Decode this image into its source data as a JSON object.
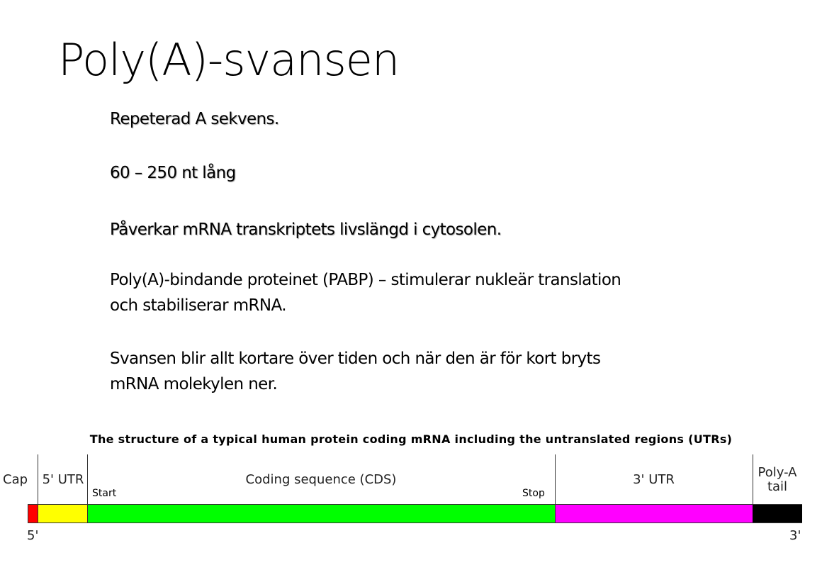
{
  "slide": {
    "title": "Poly(A)-svansen",
    "bullets": [
      "Repeterad A sekvens.",
      "60 – 250 nt lång",
      "Påverkar mRNA transkriptets livslängd i cytosolen.",
      "Poly(A)-bindande proteinet (PABP) – stimulerar nukleär translation",
      "och stabiliserar mRNA.",
      "Svansen blir allt kortare över tiden och när den är för kort bryts",
      "mRNA molekylen ner."
    ]
  },
  "diagram": {
    "title": "The structure of a typical human protein coding mRNA including the untranslated regions (UTRs)",
    "regions": [
      {
        "label": "Cap",
        "color": "#ff0000"
      },
      {
        "label": "5' UTR",
        "color": "#ffff00"
      },
      {
        "label": "Coding sequence (CDS)",
        "color": "#00ff00"
      },
      {
        "label": "3' UTR",
        "color": "#ff00ff"
      },
      {
        "label_line1": "Poly-A",
        "label_line2": "tail",
        "color": "#000000"
      }
    ],
    "start_label": "Start",
    "stop_label": "Stop",
    "five_prime": "5'",
    "three_prime": "3'"
  }
}
